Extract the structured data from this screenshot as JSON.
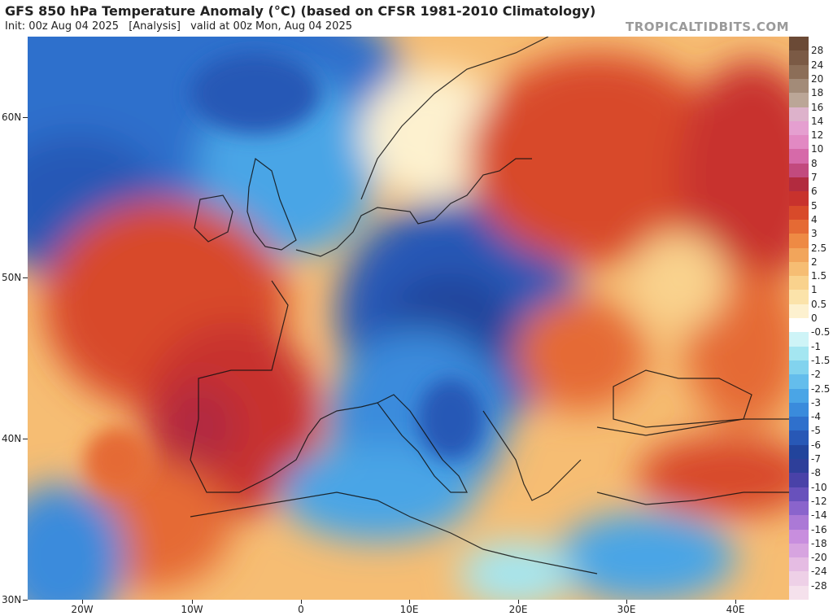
{
  "header": {
    "title": "GFS 850 hPa Temperature Anomaly (°C) (based on CFSR 1981-2010 Climatology)",
    "init": "Init: 00z Aug 04 2025",
    "analysis": "[Analysis]",
    "valid": "valid at 00z Mon, Aug 04 2025",
    "brand": "TROPICALTIDBITS.COM"
  },
  "axes": {
    "lat_labels": [
      "60N",
      "50N",
      "40N",
      "30N"
    ],
    "lon_labels": [
      "20W",
      "10W",
      "0",
      "10E",
      "20E",
      "30E",
      "40E"
    ]
  },
  "colorbar": {
    "labels": [
      "28",
      "24",
      "20",
      "18",
      "16",
      "14",
      "12",
      "10",
      "8",
      "7",
      "6",
      "5",
      "4",
      "3",
      "2.5",
      "2",
      "1.5",
      "1",
      "0.5",
      "0",
      "-0.5",
      "-1",
      "-1.5",
      "-2",
      "-2.5",
      "-3",
      "-4",
      "-5",
      "-6",
      "-7",
      "-8",
      "-10",
      "-12",
      "-14",
      "-16",
      "-18",
      "-20",
      "-24",
      "-28"
    ],
    "colors": [
      "#7b5a45",
      "#8c6e58",
      "#a38b78",
      "#bba697",
      "#ddb2cb",
      "#e59fd0",
      "#e289c3",
      "#d66aa9",
      "#c24a7e",
      "#b22b3f",
      "#c8322d",
      "#d84a2a",
      "#e56a34",
      "#ee8a44",
      "#f2a55b",
      "#f6bd73",
      "#f9d28d",
      "#fbe3aa",
      "#fdf1cf",
      "#ffffff",
      "#cef4f7",
      "#a4e6f1",
      "#82d3ee",
      "#64bdec",
      "#4aa5e6",
      "#3a8bdc",
      "#2f70cc",
      "#2858b6",
      "#22449c",
      "#2e3f9a",
      "#4942a8",
      "#6851bc",
      "#8a64cc",
      "#ab79d6",
      "#c88ede",
      "#d7a4e0",
      "#e5bce3",
      "#eed0e7",
      "#f5e1ec"
    ]
  }
}
